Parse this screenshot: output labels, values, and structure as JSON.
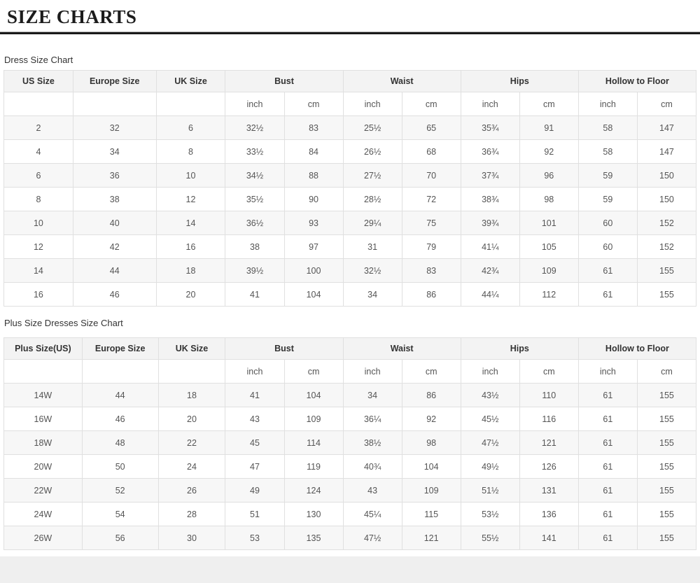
{
  "header": {
    "title": "SIZE CHARTS"
  },
  "tables": [
    {
      "caption": "Dress Size Chart",
      "columns": {
        "groups": [
          {
            "label": "US Size",
            "span": 1
          },
          {
            "label": "Europe Size",
            "span": 1
          },
          {
            "label": "UK Size",
            "span": 1
          },
          {
            "label": "Bust",
            "span": 2
          },
          {
            "label": "Waist",
            "span": 2
          },
          {
            "label": "Hips",
            "span": 2
          },
          {
            "label": "Hollow to Floor",
            "span": 2
          }
        ],
        "units": [
          "",
          "",
          "",
          "inch",
          "cm",
          "inch",
          "cm",
          "inch",
          "cm",
          "inch",
          "cm"
        ]
      },
      "rows": [
        [
          "2",
          "32",
          "6",
          "32½",
          "83",
          "25½",
          "65",
          "35¾",
          "91",
          "58",
          "147"
        ],
        [
          "4",
          "34",
          "8",
          "33½",
          "84",
          "26½",
          "68",
          "36¾",
          "92",
          "58",
          "147"
        ],
        [
          "6",
          "36",
          "10",
          "34½",
          "88",
          "27½",
          "70",
          "37¾",
          "96",
          "59",
          "150"
        ],
        [
          "8",
          "38",
          "12",
          "35½",
          "90",
          "28½",
          "72",
          "38¾",
          "98",
          "59",
          "150"
        ],
        [
          "10",
          "40",
          "14",
          "36½",
          "93",
          "29¼",
          "75",
          "39¾",
          "101",
          "60",
          "152"
        ],
        [
          "12",
          "42",
          "16",
          "38",
          "97",
          "31",
          "79",
          "41¼",
          "105",
          "60",
          "152"
        ],
        [
          "14",
          "44",
          "18",
          "39½",
          "100",
          "32½",
          "83",
          "42¾",
          "109",
          "61",
          "155"
        ],
        [
          "16",
          "46",
          "20",
          "41",
          "104",
          "34",
          "86",
          "44¼",
          "112",
          "61",
          "155"
        ]
      ]
    },
    {
      "caption": "Plus Size Dresses Size Chart",
      "columns": {
        "groups": [
          {
            "label": "Plus Size(US)",
            "span": 1
          },
          {
            "label": "Europe Size",
            "span": 1
          },
          {
            "label": "UK Size",
            "span": 1
          },
          {
            "label": "Bust",
            "span": 2
          },
          {
            "label": "Waist",
            "span": 2
          },
          {
            "label": "Hips",
            "span": 2
          },
          {
            "label": "Hollow to Floor",
            "span": 2
          }
        ],
        "units": [
          "",
          "",
          "",
          "inch",
          "cm",
          "inch",
          "cm",
          "inch",
          "cm",
          "inch",
          "cm"
        ]
      },
      "rows": [
        [
          "14W",
          "44",
          "18",
          "41",
          "104",
          "34",
          "86",
          "43½",
          "110",
          "61",
          "155"
        ],
        [
          "16W",
          "46",
          "20",
          "43",
          "109",
          "36¼",
          "92",
          "45½",
          "116",
          "61",
          "155"
        ],
        [
          "18W",
          "48",
          "22",
          "45",
          "114",
          "38½",
          "98",
          "47½",
          "121",
          "61",
          "155"
        ],
        [
          "20W",
          "50",
          "24",
          "47",
          "119",
          "40¾",
          "104",
          "49½",
          "126",
          "61",
          "155"
        ],
        [
          "22W",
          "52",
          "26",
          "49",
          "124",
          "43",
          "109",
          "51½",
          "131",
          "61",
          "155"
        ],
        [
          "24W",
          "54",
          "28",
          "51",
          "130",
          "45¼",
          "115",
          "53½",
          "136",
          "61",
          "155"
        ],
        [
          "26W",
          "56",
          "30",
          "53",
          "135",
          "47½",
          "121",
          "55½",
          "141",
          "61",
          "155"
        ]
      ]
    }
  ],
  "colors": {
    "rule": "#1a1a1a",
    "header_bg": "#f3f3f3",
    "row_alt_bg": "#f7f7f7",
    "border": "#e0e0e0",
    "bottom_band": "#efefef",
    "text": "#555555"
  }
}
